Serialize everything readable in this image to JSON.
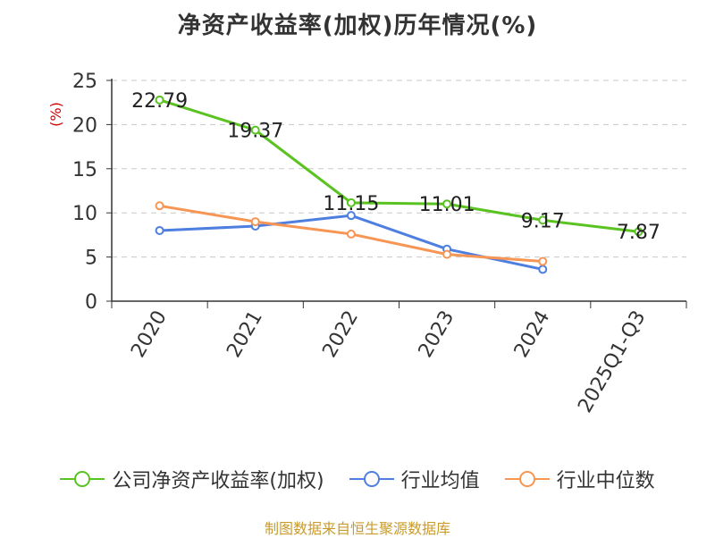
{
  "chart_data": {
    "type": "line",
    "title": "净资产收益率(加权)历年情况(%)",
    "ylabel": "(%)",
    "xlabel": "",
    "ylim": [
      0,
      25
    ],
    "yticks": [
      0,
      5,
      10,
      15,
      20,
      25
    ],
    "grid": true,
    "categories": [
      "2020",
      "2021",
      "2022",
      "2023",
      "2024",
      "2025Q1-Q3"
    ],
    "series": [
      {
        "name": "公司净资产收益率(加权)",
        "color": "#5ac322",
        "values": [
          22.79,
          19.37,
          11.15,
          11.01,
          9.17,
          7.87
        ],
        "labels": [
          "22.79",
          "19.37",
          "11.15",
          "11.01",
          "9.17",
          "7.87"
        ]
      },
      {
        "name": "行业均值",
        "color": "#4e7fe0",
        "values": [
          8.0,
          8.5,
          9.7,
          5.9,
          3.6,
          null
        ]
      },
      {
        "name": "行业中位数",
        "color": "#f79554",
        "values": [
          10.8,
          9.0,
          7.6,
          5.3,
          4.5,
          null
        ]
      }
    ],
    "legend_position": "bottom"
  },
  "source": "制图数据来自恒生聚源数据库"
}
